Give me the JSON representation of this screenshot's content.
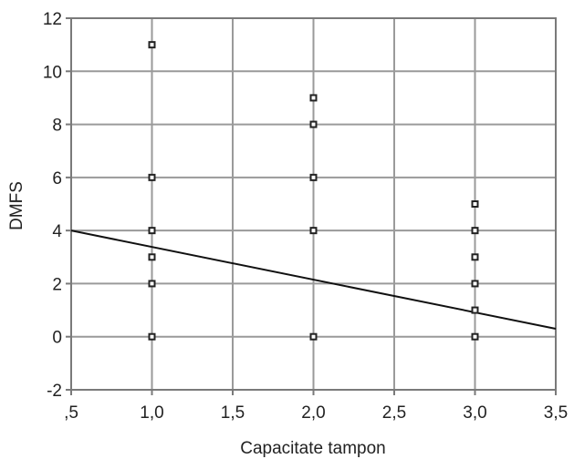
{
  "chart_data": {
    "type": "scatter",
    "title": "",
    "xlabel": "Capacitate tampon",
    "ylabel": "DMFS",
    "xlim": [
      0.5,
      3.5
    ],
    "ylim": [
      -2,
      12
    ],
    "x_ticks": [
      0.5,
      1.0,
      1.5,
      2.0,
      2.5,
      3.0,
      3.5
    ],
    "x_tick_labels": [
      ",5",
      "1,0",
      "1,5",
      "2,0",
      "2,5",
      "3,0",
      "3,5"
    ],
    "y_ticks": [
      -2,
      0,
      2,
      4,
      6,
      8,
      10,
      12
    ],
    "y_tick_labels": [
      "-2",
      "0",
      "2",
      "4",
      "6",
      "8",
      "10",
      "12"
    ],
    "grid": true,
    "series": [
      {
        "points": [
          [
            1,
            11
          ],
          [
            1,
            6
          ],
          [
            1,
            4
          ],
          [
            1,
            3
          ],
          [
            1,
            2
          ],
          [
            1,
            0
          ],
          [
            2,
            9
          ],
          [
            2,
            8
          ],
          [
            2,
            6
          ],
          [
            2,
            4
          ],
          [
            2,
            0
          ],
          [
            3,
            5
          ],
          [
            3,
            4
          ],
          [
            3,
            3
          ],
          [
            3,
            2
          ],
          [
            3,
            1
          ],
          [
            3,
            0
          ]
        ],
        "marker": "square",
        "color": "#222222"
      }
    ],
    "fit_line": {
      "x": [
        0.5,
        3.5
      ],
      "y": [
        4.0,
        0.3
      ],
      "color": "#111111"
    },
    "colors": {
      "grid": "#9a9a9a",
      "axis": "#7a7a7a",
      "text": "#222222"
    }
  }
}
